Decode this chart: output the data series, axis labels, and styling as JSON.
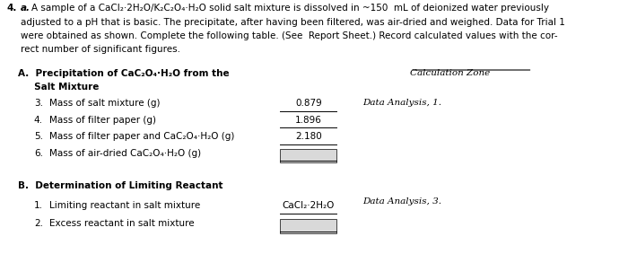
{
  "title_number": "4.",
  "title_letter": "a.",
  "intro_text": [
    "A sample of a CaCl₂·2H₂O/K₂C₂O₄·H₂O solid salt mixture is dissolved in ~150  mL of deionized water previously",
    "adjusted to a pH that is basic. The precipitate, after having been filtered, was air-dried and weighed. Data for Trial 1",
    "were obtained as shown. Complete the following table. (See  Report Sheet.) Record calculated values with the cor-",
    "rect number of significant figures."
  ],
  "section_a_title": "A.  Precipitation of CaC₂O₄·H₂O from the",
  "section_a_title2": "     Salt Mixture",
  "calc_zone_label": "Calculation Zone",
  "items_a": [
    {
      "num": "3.",
      "label": "Mass of salt mixture (g)",
      "value": "0.879"
    },
    {
      "num": "4.",
      "label": "Mass of filter paper (g)",
      "value": "1.896"
    },
    {
      "num": "5.",
      "label": "Mass of filter paper and CaC₂O₄·H₂O (g)",
      "value": "2.180"
    },
    {
      "num": "6.",
      "label": "Mass of air-dried CaC₂O₄·H₂O (g)",
      "value": ""
    }
  ],
  "data_analysis_1": "Data Analysis, 1.",
  "section_b_title": "B.  Determination of Limiting Reactant",
  "items_b": [
    {
      "num": "1.",
      "label": "Limiting reactant in salt mixture",
      "value": "CaCl₂·2H₂O"
    },
    {
      "num": "2.",
      "label": "Excess reactant in salt mixture",
      "value": ""
    }
  ],
  "data_analysis_3": "Data Analysis, 3.",
  "box_color": "#d9d9d9",
  "bg_color": "#ffffff",
  "text_color": "#000000"
}
